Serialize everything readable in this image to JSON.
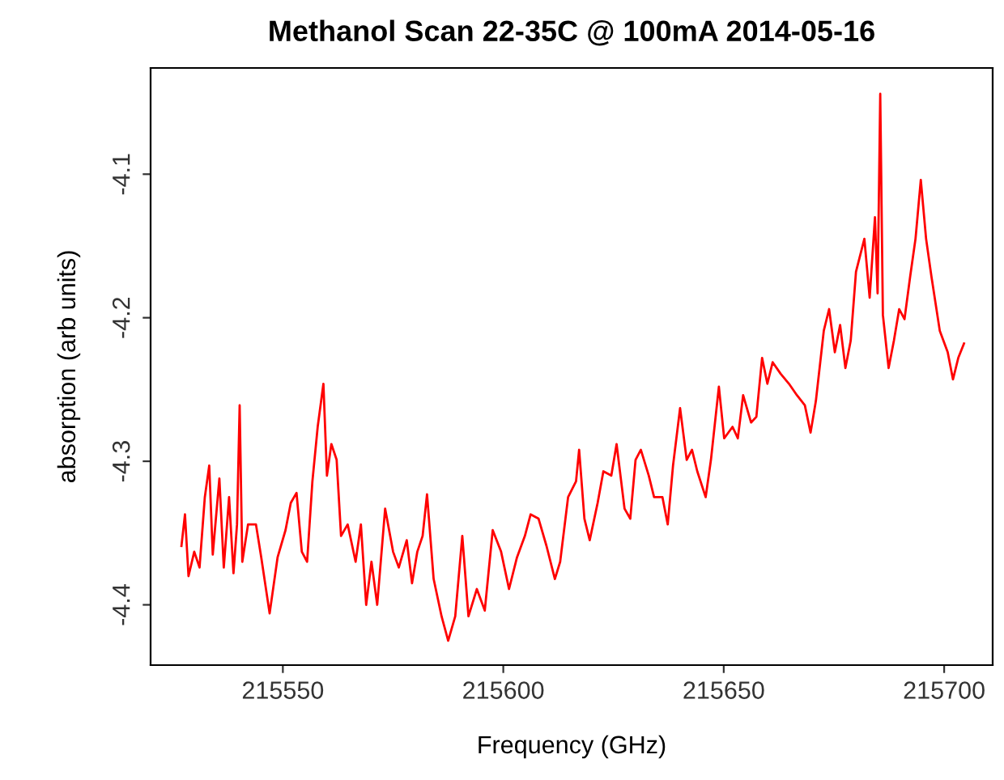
{
  "chart_data": {
    "type": "line",
    "title": "Methanol Scan 22-35C @ 100mA 2014-05-16",
    "xlabel": "Frequency (GHz)",
    "ylabel": "absorption (arb units)",
    "xlim": [
      215520,
      215711
    ],
    "ylim": [
      -4.442,
      -4.026
    ],
    "xticks": [
      215550,
      215600,
      215650,
      215700
    ],
    "yticks": [
      -4.4,
      -4.3,
      -4.2,
      -4.1
    ],
    "grid": false,
    "legend": false,
    "marker": "none",
    "line_style": "solid",
    "series": [
      {
        "color": "#ff0000",
        "x": [
          215527.0,
          215527.8,
          215528.6,
          215529.9,
          215531.1,
          215532.3,
          215533.3,
          215534.1,
          215535.6,
          215536.6,
          215537.8,
          215538.8,
          215539.6,
          215540.2,
          215540.8,
          215542.1,
          215543.9,
          215545.1,
          215547.0,
          215548.8,
          215550.6,
          215551.8,
          215553.1,
          215554.3,
          215555.5,
          215556.7,
          215557.9,
          215559.2,
          215560.0,
          215561.0,
          215562.2,
          215563.2,
          215564.7,
          215566.5,
          215567.7,
          215568.9,
          215570.1,
          215571.4,
          215573.2,
          215575.0,
          215576.3,
          215578.1,
          215579.3,
          215580.5,
          215581.7,
          215582.7,
          215584.2,
          215586.0,
          215587.5,
          215589.1,
          215590.7,
          215592.1,
          215594.0,
          215595.8,
          215597.6,
          215599.5,
          215601.3,
          215603.1,
          215604.9,
          215606.2,
          215608.0,
          215609.8,
          215611.7,
          215612.9,
          215614.7,
          215616.5,
          215617.2,
          215618.4,
          215619.6,
          215621.4,
          215622.7,
          215624.5,
          215625.7,
          215627.5,
          215628.8,
          215630.0,
          215631.2,
          215633.0,
          215634.2,
          215636.1,
          215637.3,
          215638.5,
          215640.1,
          215641.6,
          215642.8,
          215644.0,
          215645.9,
          215647.1,
          215648.9,
          215650.1,
          215652.0,
          215653.2,
          215654.4,
          215656.2,
          215657.4,
          215658.7,
          215659.9,
          215661.1,
          215662.9,
          215664.8,
          215666.6,
          215668.4,
          215669.7,
          215670.9,
          215672.7,
          215673.9,
          215675.2,
          215676.4,
          215677.6,
          215678.8,
          215680.0,
          215681.9,
          215683.1,
          215684.3,
          215684.9,
          215685.5,
          215686.1,
          215687.4,
          215688.6,
          215689.8,
          215691.0,
          215692.3,
          215693.5,
          215694.7,
          215695.9,
          215697.1,
          215699.0,
          215700.8,
          215702.0,
          215703.2,
          215704.5
        ],
        "values": [
          -4.359,
          -4.337,
          -4.38,
          -4.363,
          -4.374,
          -4.325,
          -4.303,
          -4.365,
          -4.312,
          -4.374,
          -4.325,
          -4.378,
          -4.344,
          -4.261,
          -4.37,
          -4.344,
          -4.344,
          -4.367,
          -4.406,
          -4.367,
          -4.348,
          -4.329,
          -4.322,
          -4.363,
          -4.37,
          -4.314,
          -4.276,
          -4.246,
          -4.31,
          -4.288,
          -4.299,
          -4.352,
          -4.344,
          -4.37,
          -4.344,
          -4.4,
          -4.37,
          -4.4,
          -4.333,
          -4.363,
          -4.374,
          -4.355,
          -4.385,
          -4.363,
          -4.352,
          -4.323,
          -4.382,
          -4.408,
          -4.425,
          -4.408,
          -4.352,
          -4.408,
          -4.389,
          -4.404,
          -4.348,
          -4.363,
          -4.389,
          -4.367,
          -4.352,
          -4.337,
          -4.34,
          -4.359,
          -4.382,
          -4.37,
          -4.325,
          -4.314,
          -4.292,
          -4.34,
          -4.355,
          -4.329,
          -4.307,
          -4.31,
          -4.288,
          -4.333,
          -4.34,
          -4.299,
          -4.292,
          -4.31,
          -4.325,
          -4.325,
          -4.344,
          -4.303,
          -4.263,
          -4.299,
          -4.292,
          -4.307,
          -4.325,
          -4.299,
          -4.248,
          -4.284,
          -4.276,
          -4.284,
          -4.254,
          -4.273,
          -4.269,
          -4.228,
          -4.246,
          -4.231,
          -4.239,
          -4.246,
          -4.254,
          -4.261,
          -4.28,
          -4.258,
          -4.209,
          -4.194,
          -4.224,
          -4.205,
          -4.235,
          -4.216,
          -4.168,
          -4.145,
          -4.186,
          -4.13,
          -4.183,
          -4.044,
          -4.198,
          -4.235,
          -4.216,
          -4.194,
          -4.201,
          -4.171,
          -4.145,
          -4.104,
          -4.145,
          -4.171,
          -4.209,
          -4.224,
          -4.243,
          -4.228,
          -4.218
        ]
      }
    ]
  }
}
